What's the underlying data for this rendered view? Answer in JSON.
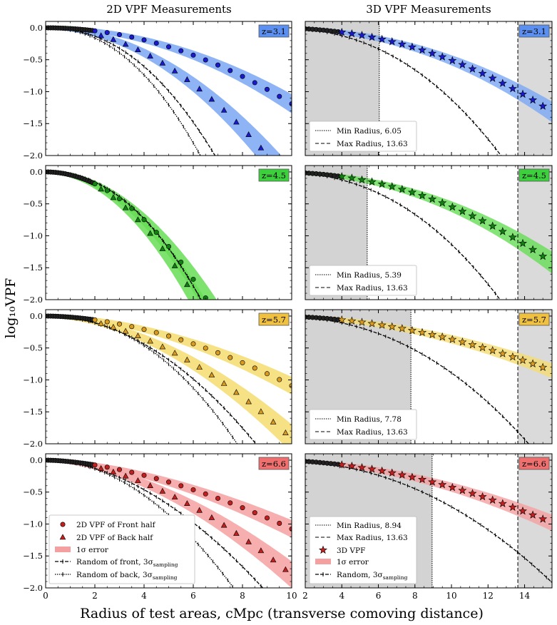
{
  "figure": {
    "col_titles": [
      "2D VPF Measurements",
      "3D VPF Measurements"
    ],
    "ylabel": "log₁₀VPF",
    "xlabel": "Radius of test areas, cMpc (transverse comoving distance)"
  },
  "chart_data": {
    "type": "line",
    "panels_2d": {
      "xlim": [
        0,
        10
      ],
      "ylim": [
        -2.0,
        0.1
      ],
      "xticks": [
        0,
        2,
        4,
        6,
        8,
        10
      ],
      "yticks": [
        0.0,
        -0.5,
        -1.0,
        -1.5,
        -2.0
      ],
      "ytick_labels": [
        "0.0",
        "−0.5",
        "−1.0",
        "−1.5",
        "−2.0"
      ],
      "legend": [
        {
          "label": "2D VPF of Front half",
          "marker": "circle"
        },
        {
          "label": "2D VPF of Back half",
          "marker": "triangle"
        },
        {
          "label": "1σ error",
          "marker": "band"
        },
        {
          "label": "Random of front, 3σ",
          "subscript": "sampling",
          "marker": "dashed"
        },
        {
          "label": "Random of back, 3σ",
          "subscript": "sampling",
          "marker": "dotted"
        }
      ]
    },
    "panels_3d": {
      "xlim": [
        2,
        15.5
      ],
      "ylim": [
        -2.0,
        0.1
      ],
      "xticks": [
        2,
        4,
        6,
        8,
        10,
        12,
        14
      ],
      "legend_extra": [
        {
          "label": "3D VPF",
          "marker": "star"
        },
        {
          "label": "1σ error",
          "marker": "band"
        },
        {
          "label": "Random, 3σ",
          "subscript": "sampling",
          "marker": "dashed"
        }
      ]
    },
    "rows": [
      {
        "z_label": "z=3.1",
        "color": "#5b8ff0",
        "band_color": "#7aa7f5",
        "marker_color": "#1a1acc",
        "front_2d": {
          "A": 0.0119,
          "p": 2.0
        },
        "back_2d": {
          "A": 0.0246,
          "p": 2.0
        },
        "rand_front": {
          "A": 0.0287,
          "p": 2.2
        },
        "rand_back": {
          "A": 0.035,
          "p": 2.2
        },
        "vpf_3d": {
          "A": 0.00344,
          "p": 2.17
        },
        "rand_3d": {
          "A": 0.00448,
          "p": 2.4
        },
        "min_radius": 6.05,
        "max_radius": 13.63,
        "min_label": "Min Radius, 6.05",
        "max_label": "Max Radius, 13.63"
      },
      {
        "z_label": "z=4.5",
        "color": "#3cd03c",
        "band_color": "#66dd55",
        "marker_color": "#108010",
        "front_2d": {
          "A": 0.0467,
          "p": 2.0
        },
        "back_2d": {
          "A": 0.0534,
          "p": 2.0
        },
        "rand_front": {
          "A": 0.0347,
          "p": 2.2
        },
        "rand_back": {
          "A": 0.0347,
          "p": 2.2
        },
        "vpf_3d": {
          "A": 0.00351,
          "p": 2.19
        },
        "rand_3d": {
          "A": 0.00452,
          "p": 2.4
        },
        "min_radius": 5.39,
        "max_radius": 13.63,
        "min_label": "Min Radius, 5.39",
        "max_label": "Max Radius, 13.63"
      },
      {
        "z_label": "z=5.7",
        "color": "#f0c040",
        "band_color": "#f5dc70",
        "marker_color": "#d89a20",
        "front_2d": {
          "A": 0.0173,
          "p": 1.8
        },
        "back_2d": {
          "A": 0.0271,
          "p": 1.85
        },
        "rand_front": {
          "A": 0.0274,
          "p": 2.0
        },
        "rand_back": {
          "A": 0.0219,
          "p": 2.2
        },
        "vpf_3d": {
          "A": 0.00398,
          "p": 1.96
        },
        "rand_3d": {
          "A": 0.00446,
          "p": 2.3
        },
        "min_radius": 7.78,
        "max_radius": 13.63,
        "min_label": "Min Radius, 7.78",
        "max_label": "Max Radius, 13.63"
      },
      {
        "z_label": "z=6.6",
        "color": "#f07070",
        "band_color": "#f5a0a0",
        "marker_color": "#c02020",
        "front_2d": {
          "A": 0.0241,
          "p": 1.65
        },
        "back_2d": {
          "A": 0.0319,
          "p": 1.75
        },
        "rand_front": {
          "A": 0.0356,
          "p": 1.85
        },
        "rand_back": {
          "A": 0.0343,
          "p": 2.0
        },
        "vpf_3d": {
          "A": 0.00509,
          "p": 1.92
        },
        "rand_3d": {
          "A": 0.00461,
          "p": 2.2
        },
        "min_radius": 8.94,
        "max_radius": 13.63,
        "min_label": "Min Radius, 8.94",
        "max_label": "Max Radius, 13.63"
      }
    ]
  }
}
